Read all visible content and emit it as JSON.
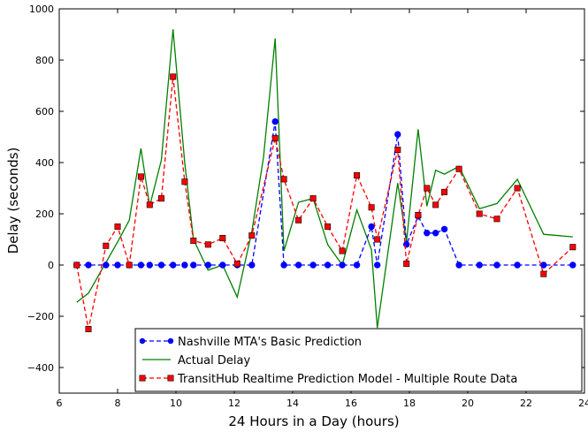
{
  "chart_data": {
    "type": "line",
    "xlabel": "24 Hours in a Day (hours)",
    "ylabel": "Delay (seconds)",
    "xlim": [
      6,
      24
    ],
    "ylim": [
      -500,
      1000
    ],
    "xticks": [
      "6",
      "8",
      "10",
      "12",
      "14",
      "16",
      "18",
      "20",
      "22",
      "24"
    ],
    "yticks": [
      "−400",
      "−200",
      "0",
      "200",
      "400",
      "600",
      "800",
      "1000"
    ],
    "grid": false,
    "legend_position": "bottom-right",
    "series": [
      {
        "name": "Nashville MTA's Basic Prediction",
        "color": "#0000ff",
        "style": "dashed",
        "marker": "circle",
        "points": [
          [
            6.6,
            0
          ],
          [
            7.0,
            0
          ],
          [
            7.6,
            0
          ],
          [
            8.0,
            0
          ],
          [
            8.4,
            0
          ],
          [
            8.8,
            0
          ],
          [
            9.1,
            0
          ],
          [
            9.5,
            0
          ],
          [
            9.9,
            0
          ],
          [
            10.3,
            0
          ],
          [
            10.6,
            0
          ],
          [
            11.1,
            0
          ],
          [
            11.6,
            0
          ],
          [
            12.1,
            0
          ],
          [
            12.6,
            0
          ],
          [
            13.4,
            560
          ],
          [
            13.7,
            0
          ],
          [
            14.2,
            0
          ],
          [
            14.7,
            0
          ],
          [
            15.2,
            0
          ],
          [
            15.7,
            0
          ],
          [
            16.2,
            0
          ],
          [
            16.7,
            150
          ],
          [
            16.9,
            0
          ],
          [
            17.6,
            510
          ],
          [
            17.9,
            80
          ],
          [
            18.3,
            190
          ],
          [
            18.6,
            125
          ],
          [
            18.9,
            125
          ],
          [
            19.2,
            140
          ],
          [
            19.7,
            0
          ],
          [
            20.4,
            0
          ],
          [
            21.0,
            0
          ],
          [
            21.7,
            0
          ],
          [
            22.6,
            0
          ],
          [
            23.6,
            0
          ]
        ]
      },
      {
        "name": "Actual Delay",
        "color": "#008000",
        "style": "solid",
        "marker": "none",
        "points": [
          [
            6.6,
            -145
          ],
          [
            7.0,
            -110
          ],
          [
            7.5,
            -10
          ],
          [
            8.0,
            90
          ],
          [
            8.4,
            175
          ],
          [
            8.8,
            455
          ],
          [
            9.1,
            230
          ],
          [
            9.5,
            410
          ],
          [
            9.9,
            920
          ],
          [
            10.3,
            400
          ],
          [
            10.6,
            100
          ],
          [
            11.1,
            -20
          ],
          [
            11.6,
            0
          ],
          [
            12.1,
            -125
          ],
          [
            12.6,
            130
          ],
          [
            13.0,
            420
          ],
          [
            13.4,
            885
          ],
          [
            13.7,
            55
          ],
          [
            14.2,
            245
          ],
          [
            14.7,
            260
          ],
          [
            15.2,
            80
          ],
          [
            15.7,
            0
          ],
          [
            16.2,
            215
          ],
          [
            16.7,
            60
          ],
          [
            16.9,
            -245
          ],
          [
            17.6,
            320
          ],
          [
            17.9,
            90
          ],
          [
            18.3,
            530
          ],
          [
            18.6,
            230
          ],
          [
            18.9,
            370
          ],
          [
            19.2,
            355
          ],
          [
            19.7,
            385
          ],
          [
            20.4,
            220
          ],
          [
            21.0,
            240
          ],
          [
            21.7,
            335
          ],
          [
            22.6,
            120
          ],
          [
            23.6,
            110
          ]
        ]
      },
      {
        "name": "TransitHub Realtime Prediction Model - Multiple Route Data",
        "color": "#ff0000",
        "style": "dashed",
        "marker": "square",
        "points": [
          [
            6.6,
            0
          ],
          [
            7.0,
            -250
          ],
          [
            7.6,
            75
          ],
          [
            8.0,
            150
          ],
          [
            8.4,
            0
          ],
          [
            8.8,
            345
          ],
          [
            9.1,
            235
          ],
          [
            9.5,
            260
          ],
          [
            9.9,
            735
          ],
          [
            10.3,
            325
          ],
          [
            10.6,
            95
          ],
          [
            11.1,
            80
          ],
          [
            11.6,
            105
          ],
          [
            12.1,
            5
          ],
          [
            12.6,
            115
          ],
          [
            13.4,
            495
          ],
          [
            13.7,
            335
          ],
          [
            14.2,
            175
          ],
          [
            14.7,
            260
          ],
          [
            15.2,
            150
          ],
          [
            15.7,
            55
          ],
          [
            16.2,
            350
          ],
          [
            16.7,
            225
          ],
          [
            16.9,
            100
          ],
          [
            17.6,
            450
          ],
          [
            17.9,
            5
          ],
          [
            18.3,
            195
          ],
          [
            18.6,
            300
          ],
          [
            18.9,
            235
          ],
          [
            19.2,
            285
          ],
          [
            19.7,
            375
          ],
          [
            20.4,
            200
          ],
          [
            21.0,
            180
          ],
          [
            21.7,
            300
          ],
          [
            22.6,
            -35
          ],
          [
            23.6,
            70
          ]
        ]
      }
    ]
  }
}
